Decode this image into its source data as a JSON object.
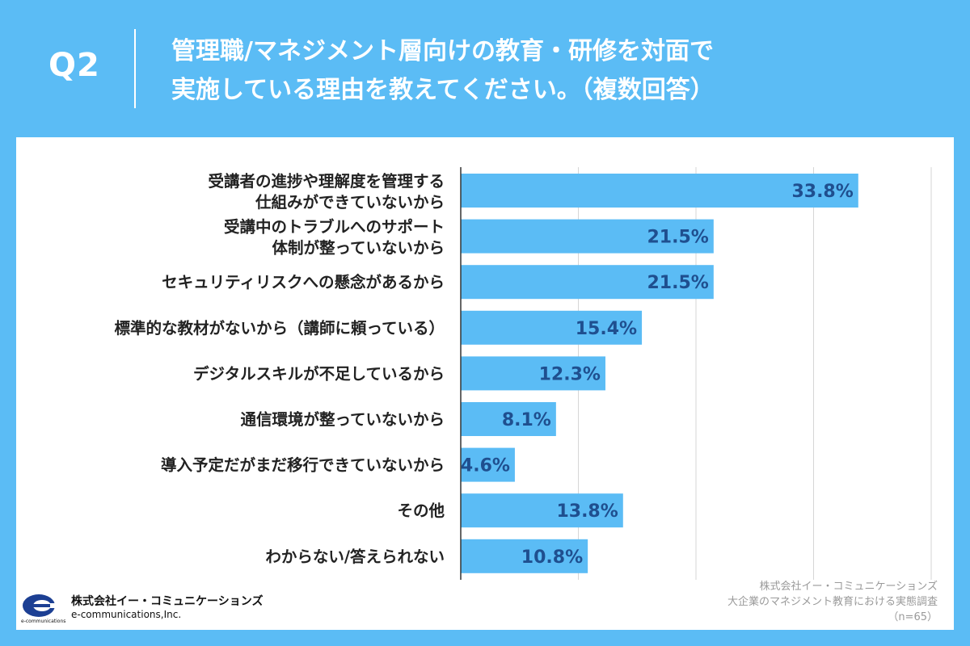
{
  "header": {
    "q_label": "Q2",
    "question_line1": "管理職/マネジメント層向けの教育・研修を対面で",
    "question_line2": "実施している理由を教えてください。（複数回答）"
  },
  "chart_data": {
    "type": "bar",
    "orientation": "horizontal",
    "categories": [
      [
        "受講者の進捗や理解度を管理する",
        "仕組みができていないから"
      ],
      [
        "受講中のトラブルへのサポート",
        "体制が整っていないから"
      ],
      [
        "セキュリティリスクへの懸念があるから"
      ],
      [
        "標準的な教材がないから（講師に頼っている）"
      ],
      [
        "デジタルスキルが不足しているから"
      ],
      [
        "通信環境が整っていないから"
      ],
      [
        "導入予定だがまだ移行できていないから"
      ],
      [
        "その他"
      ],
      [
        "わからない/答えられない"
      ]
    ],
    "values": [
      33.8,
      21.5,
      21.5,
      15.4,
      12.3,
      8.1,
      4.6,
      13.8,
      10.8
    ],
    "value_labels": [
      "33.8%",
      "21.5%",
      "21.5%",
      "15.4%",
      "12.3%",
      "8.1%",
      "4.6%",
      "13.8%",
      "10.8%"
    ],
    "xlim": [
      0,
      40
    ],
    "grid": true,
    "bar_color": "#5bbcf5",
    "label_color": "#1f4f8f"
  },
  "source": {
    "company": "株式会社イー・コミュニケーションズ",
    "survey": "大企業のマネジメント教育における実態調査",
    "sample": "（n=65）"
  },
  "logo": {
    "name_jp": "株式会社イー・コミュニケーションズ",
    "name_en": "e-communications,Inc.",
    "tiny": "e-communications"
  },
  "colors": {
    "background": "#5bbcf5",
    "panel": "#ffffff"
  }
}
